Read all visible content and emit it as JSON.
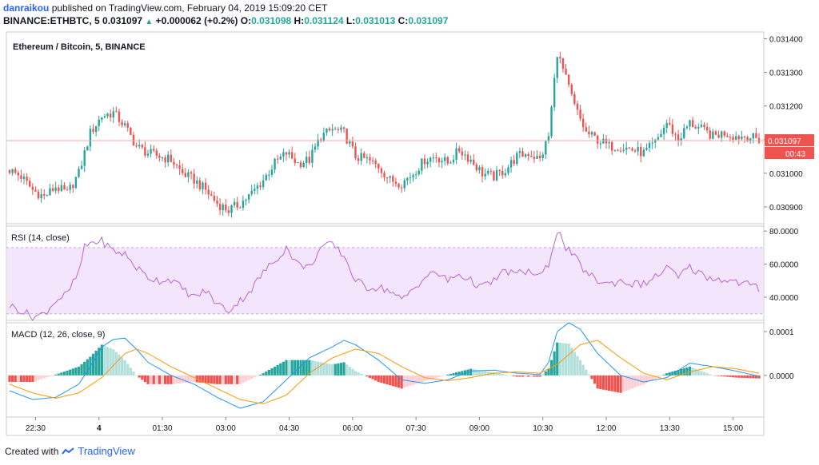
{
  "header": {
    "author": "danraikou",
    "published_text": "published on TradingView.com, February 04, 2019 15:09:20 CET",
    "symbol": "BINANCE:ETHBTC, 5",
    "last": "0.031097",
    "change": "+0.000062 (+0.2%)",
    "o_label": "O:",
    "o": "0.031098",
    "h_label": "H:",
    "h": "0.031124",
    "l_label": "L:",
    "l": "0.031013",
    "c_label": "C:",
    "c": "0.031097"
  },
  "footer": {
    "created_with": "Created with",
    "brand": "TradingView"
  },
  "colors": {
    "up": "#26a69a",
    "down": "#ef5350",
    "rsi": "#b666d2",
    "rsi_band": "#f3e5fc",
    "macd": "#2196f3",
    "signal": "#ff9800",
    "price_line": "#f7a8a8",
    "price_label": "#ef5350"
  },
  "chart_data": [
    {
      "type": "candlestick",
      "title": "Ethereum / Bitcoin, 5, BINANCE",
      "y_ticks": [
        "0.030900",
        "0.031000",
        "0.031100",
        "0.031200",
        "0.031300",
        "0.031400"
      ],
      "ylim": [
        0.03085,
        0.03142
      ],
      "x_ticks": [
        "22:30",
        "4",
        "01:30",
        "03:00",
        "04:30",
        "06:00",
        "07:30",
        "09:00",
        "10:30",
        "12:00",
        "13:30",
        "15:00"
      ],
      "current_price_label": "0.031097",
      "countdown_label": "00:43",
      "close_path": [
        [
          0,
          0.03101
        ],
        [
          4,
          0.03099
        ],
        [
          8,
          0.03095
        ],
        [
          12,
          0.03093
        ],
        [
          16,
          0.03096
        ],
        [
          20,
          0.03094
        ],
        [
          24,
          0.031
        ],
        [
          28,
          0.03112
        ],
        [
          32,
          0.03117
        ],
        [
          36,
          0.03118
        ],
        [
          40,
          0.03114
        ],
        [
          44,
          0.03108
        ],
        [
          48,
          0.03106
        ],
        [
          52,
          0.03105
        ],
        [
          56,
          0.03104
        ],
        [
          60,
          0.031
        ],
        [
          64,
          0.03098
        ],
        [
          68,
          0.03095
        ],
        [
          72,
          0.03091
        ],
        [
          76,
          0.03089
        ],
        [
          80,
          0.03091
        ],
        [
          84,
          0.03094
        ],
        [
          88,
          0.03098
        ],
        [
          92,
          0.03103
        ],
        [
          96,
          0.03106
        ],
        [
          100,
          0.03103
        ],
        [
          104,
          0.03104
        ],
        [
          108,
          0.03111
        ],
        [
          112,
          0.03113
        ],
        [
          116,
          0.03112
        ],
        [
          120,
          0.03105
        ],
        [
          124,
          0.03104
        ],
        [
          128,
          0.03102
        ],
        [
          132,
          0.03098
        ],
        [
          136,
          0.03097
        ],
        [
          140,
          0.031
        ],
        [
          144,
          0.03104
        ],
        [
          148,
          0.03105
        ],
        [
          152,
          0.03103
        ],
        [
          156,
          0.03107
        ],
        [
          160,
          0.03104
        ],
        [
          164,
          0.031
        ],
        [
          168,
          0.03099
        ],
        [
          172,
          0.03101
        ],
        [
          176,
          0.03105
        ],
        [
          180,
          0.03106
        ],
        [
          184,
          0.03104
        ],
        [
          187,
          0.03111
        ],
        [
          190,
          0.03136
        ],
        [
          193,
          0.03128
        ],
        [
          196,
          0.0312
        ],
        [
          200,
          0.03112
        ],
        [
          204,
          0.0311
        ],
        [
          208,
          0.03108
        ],
        [
          212,
          0.03108
        ],
        [
          216,
          0.03107
        ],
        [
          220,
          0.03106
        ],
        [
          224,
          0.03109
        ],
        [
          228,
          0.03115
        ],
        [
          232,
          0.0311
        ],
        [
          236,
          0.03115
        ],
        [
          240,
          0.03113
        ],
        [
          244,
          0.03111
        ],
        [
          248,
          0.03112
        ],
        [
          252,
          0.03111
        ],
        [
          256,
          0.03111
        ],
        [
          260,
          0.0311
        ]
      ]
    },
    {
      "type": "line",
      "title": "RSI (14, close)",
      "y_ticks": [
        "40.0000",
        "60.0000",
        "80.0000"
      ],
      "ylim": [
        26,
        83
      ],
      "band": [
        30,
        70
      ],
      "series": [
        {
          "values_path": [
            [
              0,
              35
            ],
            [
              4,
              32
            ],
            [
              8,
              28
            ],
            [
              12,
              30
            ],
            [
              16,
              38
            ],
            [
              20,
              42
            ],
            [
              24,
              55
            ],
            [
              26,
              70
            ],
            [
              28,
              73
            ],
            [
              32,
              74
            ],
            [
              36,
              68
            ],
            [
              40,
              66
            ],
            [
              44,
              58
            ],
            [
              48,
              52
            ],
            [
              52,
              50
            ],
            [
              56,
              51
            ],
            [
              60,
              45
            ],
            [
              64,
              40
            ],
            [
              68,
              44
            ],
            [
              72,
              36
            ],
            [
              76,
              32
            ],
            [
              80,
              38
            ],
            [
              84,
              45
            ],
            [
              88,
              55
            ],
            [
              92,
              62
            ],
            [
              96,
              70
            ],
            [
              100,
              60
            ],
            [
              104,
              58
            ],
            [
              108,
              70
            ],
            [
              112,
              72
            ],
            [
              116,
              65
            ],
            [
              120,
              50
            ],
            [
              124,
              46
            ],
            [
              128,
              46
            ],
            [
              132,
              44
            ],
            [
              136,
              38
            ],
            [
              140,
              45
            ],
            [
              144,
              52
            ],
            [
              148,
              55
            ],
            [
              152,
              50
            ],
            [
              156,
              54
            ],
            [
              160,
              50
            ],
            [
              164,
              46
            ],
            [
              168,
              50
            ],
            [
              172,
              56
            ],
            [
              176,
              54
            ],
            [
              180,
              56
            ],
            [
              184,
              52
            ],
            [
              187,
              60
            ],
            [
              190,
              81
            ],
            [
              193,
              70
            ],
            [
              196,
              64
            ],
            [
              200,
              55
            ],
            [
              204,
              50
            ],
            [
              208,
              48
            ],
            [
              212,
              50
            ],
            [
              216,
              48
            ],
            [
              220,
              48
            ],
            [
              224,
              52
            ],
            [
              228,
              58
            ],
            [
              232,
              52
            ],
            [
              236,
              58
            ],
            [
              240,
              54
            ],
            [
              244,
              51
            ],
            [
              248,
              51
            ],
            [
              252,
              49
            ],
            [
              256,
              48
            ],
            [
              260,
              45
            ]
          ]
        }
      ]
    },
    {
      "type": "macd",
      "title": "MACD (12, 26, close, 9)",
      "y_ticks": [
        "0.0000",
        "0.0001"
      ],
      "ylim": [
        -9.5e-05,
        0.00012
      ],
      "macd_path": [
        [
          0,
          -3.5e-05
        ],
        [
          8,
          -5.5e-05
        ],
        [
          16,
          -5e-05
        ],
        [
          24,
          -2e-05
        ],
        [
          28,
          2e-05
        ],
        [
          32,
          6.5e-05
        ],
        [
          36,
          8.2e-05
        ],
        [
          40,
          8.5e-05
        ],
        [
          44,
          6e-05
        ],
        [
          48,
          3e-05
        ],
        [
          56,
          0.0
        ],
        [
          64,
          -2e-05
        ],
        [
          72,
          -5e-05
        ],
        [
          80,
          -7.5e-05
        ],
        [
          88,
          -6e-05
        ],
        [
          96,
          -1e-05
        ],
        [
          104,
          4e-05
        ],
        [
          112,
          6.5e-05
        ],
        [
          116,
          8e-05
        ],
        [
          120,
          7e-05
        ],
        [
          128,
          3.5e-05
        ],
        [
          136,
          -1e-05
        ],
        [
          144,
          -1.8e-05
        ],
        [
          152,
          -1e-05
        ],
        [
          160,
          1e-05
        ],
        [
          168,
          1.2e-05
        ],
        [
          176,
          5e-06
        ],
        [
          184,
          2e-06
        ],
        [
          187,
          3e-05
        ],
        [
          190,
          0.0001
        ],
        [
          194,
          0.00012
        ],
        [
          198,
          0.000105
        ],
        [
          204,
          5e-05
        ],
        [
          212,
          0.0
        ],
        [
          220,
          -1.5e-05
        ],
        [
          228,
          -5e-06
        ],
        [
          236,
          2.8e-05
        ],
        [
          244,
          2e-05
        ],
        [
          252,
          1e-05
        ],
        [
          260,
          -2e-06
        ]
      ],
      "signal_path": [
        [
          0,
          -2e-05
        ],
        [
          8,
          -4e-05
        ],
        [
          16,
          -5.2e-05
        ],
        [
          24,
          -4e-05
        ],
        [
          32,
          -5e-06
        ],
        [
          40,
          5e-05
        ],
        [
          44,
          6e-05
        ],
        [
          48,
          5e-05
        ],
        [
          56,
          2e-05
        ],
        [
          64,
          -5e-06
        ],
        [
          72,
          -3e-05
        ],
        [
          80,
          -5.5e-05
        ],
        [
          88,
          -6.5e-05
        ],
        [
          96,
          -4.5e-05
        ],
        [
          104,
          5e-06
        ],
        [
          112,
          4e-05
        ],
        [
          120,
          6e-05
        ],
        [
          128,
          5e-05
        ],
        [
          136,
          2e-05
        ],
        [
          144,
          -5e-06
        ],
        [
          152,
          -1.2e-05
        ],
        [
          160,
          -5e-06
        ],
        [
          168,
          5e-06
        ],
        [
          176,
          8e-06
        ],
        [
          184,
          5e-06
        ],
        [
          190,
          2.5e-05
        ],
        [
          198,
          7e-05
        ],
        [
          204,
          8e-05
        ],
        [
          212,
          4e-05
        ],
        [
          220,
          5e-06
        ],
        [
          228,
          -1e-05
        ],
        [
          236,
          8e-06
        ],
        [
          244,
          2e-05
        ],
        [
          252,
          1.5e-05
        ],
        [
          260,
          5e-06
        ]
      ]
    }
  ]
}
